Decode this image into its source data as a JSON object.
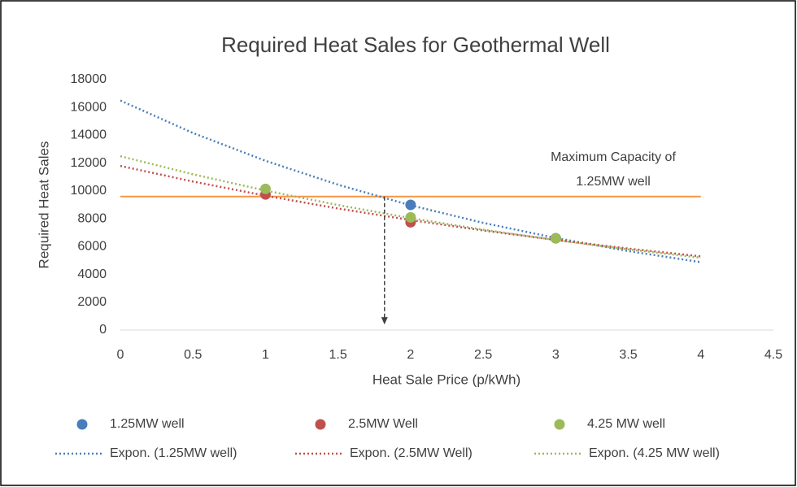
{
  "chart_data": {
    "type": "scatter",
    "title": "Required Heat Sales for Geothermal Well",
    "x_label": "Heat Sale Price (p/kWh)",
    "y_label": "Required  Heat Sales",
    "xlim": [
      0,
      4.5
    ],
    "xticks": [
      0,
      0.5,
      1,
      1.5,
      2,
      2.5,
      3,
      3.5,
      4,
      4.5
    ],
    "ylim": [
      0,
      18000
    ],
    "yticks": [
      0,
      2000,
      4000,
      6000,
      8000,
      10000,
      12000,
      14000,
      16000,
      18000
    ],
    "series": [
      {
        "name": "1.25MW well",
        "color": "#4a7ebb",
        "x": [
          2,
          3
        ],
        "values": [
          9000,
          6600
        ]
      },
      {
        "name": "2.5MW Well",
        "color": "#c0504d",
        "x": [
          1,
          2,
          3
        ],
        "values": [
          9750,
          7750,
          6600
        ]
      },
      {
        "name": "4.25 MW well",
        "color": "#9bbb59",
        "x": [
          1,
          2,
          3
        ],
        "values": [
          10150,
          8100,
          6600
        ]
      }
    ],
    "trendlines": [
      {
        "name": "Expon. (1.25MW well)",
        "color": "#4a7ebb",
        "x": [
          0,
          0.5,
          1,
          1.5,
          2,
          2.5,
          3,
          3.5,
          4
        ],
        "values": [
          16500,
          14170,
          12170,
          10450,
          8970,
          7710,
          6620,
          5680,
          4880
        ]
      },
      {
        "name": "Expon. (2.5MW Well)",
        "color": "#c0504d",
        "x": [
          0,
          0.5,
          1,
          1.5,
          2,
          2.5,
          3,
          3.5,
          4
        ],
        "values": [
          11800,
          10680,
          9660,
          8740,
          7910,
          7160,
          6480,
          5860,
          5300
        ]
      },
      {
        "name": "Expon. (4.25 MW well)",
        "color": "#9bbb59",
        "x": [
          0,
          0.5,
          1,
          1.5,
          2,
          2.5,
          3,
          3.5,
          4
        ],
        "values": [
          12500,
          11200,
          10030,
          8990,
          8050,
          7220,
          6470,
          5800,
          5200
        ]
      }
    ],
    "reference_line": {
      "value": 9600,
      "x": [
        0,
        4
      ],
      "color": "#f79646"
    },
    "arrow": {
      "x": 1.82,
      "values": [
        9600,
        400
      ]
    },
    "annotation": [
      "Maximum Capacity of",
      "1.25MW well"
    ]
  }
}
